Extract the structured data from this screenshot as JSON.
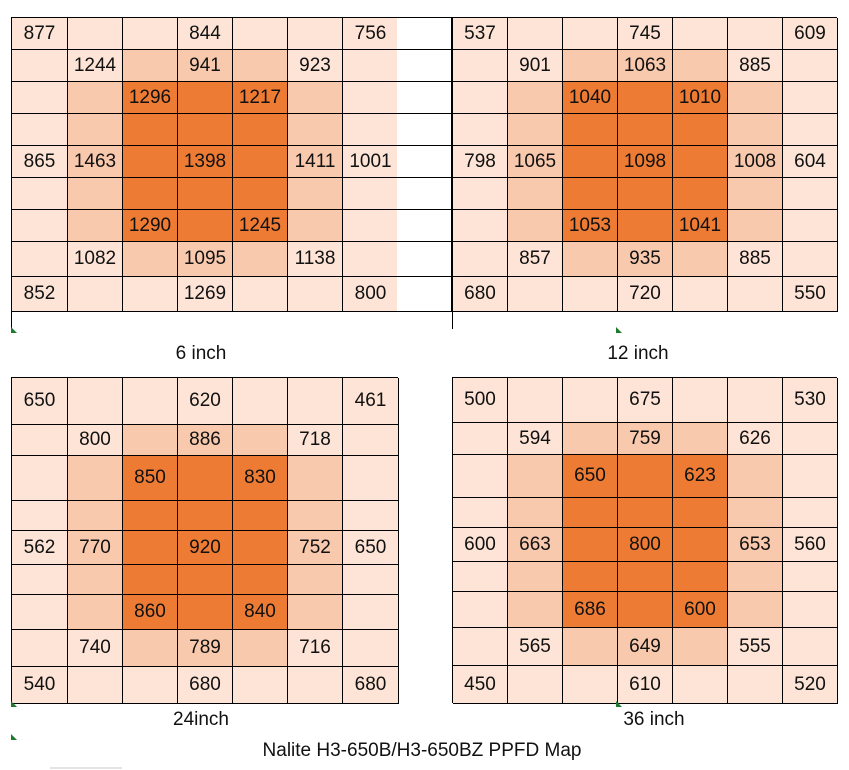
{
  "caption": "Nalite H3-650B/H3-650BZ PPFD Map",
  "chart_data": [
    {
      "type": "heatmap",
      "title": "6 inch",
      "values": [
        [
          "877",
          "",
          "",
          "844",
          "",
          "",
          "756"
        ],
        [
          "",
          "1244",
          "",
          "941",
          "",
          "923",
          ""
        ],
        [
          "",
          "",
          "1296",
          "",
          "1217",
          "",
          ""
        ],
        [
          "",
          "",
          "",
          "",
          "",
          "",
          ""
        ],
        [
          "865",
          "1463",
          "",
          "1398",
          "",
          "1411",
          "1001"
        ],
        [
          "",
          "",
          "",
          "",
          "",
          "",
          ""
        ],
        [
          "",
          "",
          "1290",
          "",
          "1245",
          "",
          ""
        ],
        [
          "",
          "1082",
          "",
          "1095",
          "",
          "1138",
          ""
        ],
        [
          "852",
          "",
          "",
          "1269",
          "",
          "",
          "800"
        ]
      ],
      "shade": [
        [
          1,
          1,
          1,
          1,
          1,
          1,
          1
        ],
        [
          1,
          1,
          2,
          2,
          2,
          1,
          1
        ],
        [
          1,
          2,
          3,
          3,
          3,
          2,
          1
        ],
        [
          1,
          2,
          3,
          3,
          3,
          2,
          1
        ],
        [
          1,
          2,
          3,
          3,
          3,
          2,
          1
        ],
        [
          1,
          2,
          3,
          3,
          3,
          2,
          1
        ],
        [
          1,
          2,
          3,
          3,
          3,
          2,
          1
        ],
        [
          1,
          1,
          2,
          2,
          2,
          1,
          1
        ],
        [
          1,
          1,
          1,
          1,
          1,
          1,
          1
        ]
      ]
    },
    {
      "type": "heatmap",
      "title": "12 inch",
      "values": [
        [
          "537",
          "",
          "",
          "745",
          "",
          "",
          "609"
        ],
        [
          "",
          "901",
          "",
          "1063",
          "",
          "885",
          ""
        ],
        [
          "",
          "",
          "1040",
          "",
          "1010",
          "",
          ""
        ],
        [
          "",
          "",
          "",
          "",
          "",
          "",
          ""
        ],
        [
          "798",
          "1065",
          "",
          "1098",
          "",
          "1008",
          "604"
        ],
        [
          "",
          "",
          "",
          "",
          "",
          "",
          ""
        ],
        [
          "",
          "",
          "1053",
          "",
          "1041",
          "",
          ""
        ],
        [
          "",
          "857",
          "",
          "935",
          "",
          "885",
          ""
        ],
        [
          "680",
          "",
          "",
          "720",
          "",
          "",
          "550"
        ]
      ],
      "shade": [
        [
          1,
          1,
          1,
          1,
          1,
          1,
          1
        ],
        [
          1,
          1,
          2,
          2,
          2,
          1,
          1
        ],
        [
          1,
          2,
          3,
          3,
          3,
          2,
          1
        ],
        [
          1,
          2,
          3,
          3,
          3,
          2,
          1
        ],
        [
          1,
          2,
          3,
          3,
          3,
          2,
          1
        ],
        [
          1,
          2,
          3,
          3,
          3,
          2,
          1
        ],
        [
          1,
          2,
          3,
          3,
          3,
          2,
          1
        ],
        [
          1,
          1,
          2,
          2,
          2,
          1,
          1
        ],
        [
          1,
          1,
          1,
          1,
          1,
          1,
          1
        ]
      ]
    },
    {
      "type": "heatmap",
      "title": "24inch",
      "values": [
        [
          "650",
          "",
          "",
          "620",
          "",
          "",
          "461"
        ],
        [
          "",
          "800",
          "",
          "886",
          "",
          "718",
          ""
        ],
        [
          "",
          "",
          "850",
          "",
          "830",
          "",
          ""
        ],
        [
          "",
          "",
          "",
          "",
          "",
          "",
          ""
        ],
        [
          "562",
          "770",
          "",
          "920",
          "",
          "752",
          "650"
        ],
        [
          "",
          "",
          "",
          "",
          "",
          "",
          ""
        ],
        [
          "",
          "",
          "860",
          "",
          "840",
          "",
          ""
        ],
        [
          "",
          "740",
          "",
          "789",
          "",
          "716",
          ""
        ],
        [
          "540",
          "",
          "",
          "680",
          "",
          "",
          "680"
        ]
      ],
      "shade": [
        [
          1,
          1,
          1,
          1,
          1,
          1,
          1
        ],
        [
          1,
          1,
          2,
          2,
          2,
          1,
          1
        ],
        [
          1,
          2,
          3,
          3,
          3,
          2,
          1
        ],
        [
          1,
          2,
          3,
          3,
          3,
          2,
          1
        ],
        [
          1,
          2,
          3,
          3,
          3,
          2,
          1
        ],
        [
          1,
          2,
          3,
          3,
          3,
          2,
          1
        ],
        [
          1,
          2,
          3,
          3,
          3,
          2,
          1
        ],
        [
          1,
          1,
          2,
          2,
          2,
          1,
          1
        ],
        [
          1,
          1,
          1,
          1,
          1,
          1,
          1
        ]
      ]
    },
    {
      "type": "heatmap",
      "title": "36 inch",
      "values": [
        [
          "500",
          "",
          "",
          "675",
          "",
          "",
          "530"
        ],
        [
          "",
          "594",
          "",
          "759",
          "",
          "626",
          ""
        ],
        [
          "",
          "",
          "650",
          "",
          "623",
          "",
          ""
        ],
        [
          "",
          "",
          "",
          "",
          "",
          "",
          ""
        ],
        [
          "600",
          "663",
          "",
          "800",
          "",
          "653",
          "560"
        ],
        [
          "",
          "",
          "",
          "",
          "",
          "",
          ""
        ],
        [
          "",
          "",
          "686",
          "",
          "600",
          "",
          ""
        ],
        [
          "",
          "565",
          "",
          "649",
          "",
          "555",
          ""
        ],
        [
          "450",
          "",
          "",
          "610",
          "",
          "",
          "520"
        ]
      ],
      "shade": [
        [
          1,
          1,
          1,
          1,
          1,
          1,
          1
        ],
        [
          1,
          1,
          2,
          2,
          2,
          1,
          1
        ],
        [
          1,
          2,
          3,
          3,
          3,
          2,
          1
        ],
        [
          1,
          2,
          3,
          3,
          3,
          2,
          1
        ],
        [
          1,
          2,
          3,
          3,
          3,
          2,
          1
        ],
        [
          1,
          2,
          3,
          3,
          3,
          2,
          1
        ],
        [
          1,
          2,
          3,
          3,
          3,
          2,
          1
        ],
        [
          1,
          1,
          2,
          2,
          2,
          1,
          1
        ],
        [
          1,
          1,
          1,
          1,
          1,
          1,
          1
        ]
      ]
    }
  ],
  "colors": {
    "low": "#fde4d6",
    "mid": "#f8c9ad",
    "high": "#ee7b33"
  }
}
